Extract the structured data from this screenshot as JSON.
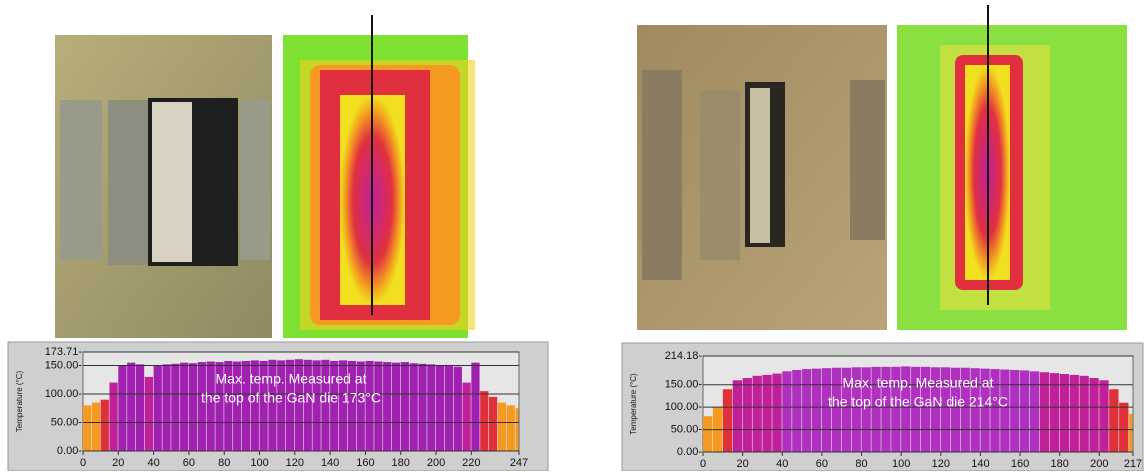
{
  "chart_data": [
    {
      "type": "bar",
      "y_label": "Temperature (°C)",
      "annotation": [
        "Max. temp. Measured at",
        "the top of the GaN die 173°C"
      ],
      "x": [
        0,
        5,
        10,
        15,
        20,
        25,
        30,
        35,
        40,
        45,
        50,
        55,
        60,
        65,
        70,
        75,
        80,
        85,
        90,
        95,
        100,
        105,
        110,
        115,
        120,
        125,
        130,
        135,
        140,
        145,
        150,
        155,
        160,
        165,
        170,
        175,
        180,
        185,
        190,
        195,
        200,
        205,
        210,
        215,
        220,
        225,
        230,
        235,
        240,
        245
      ],
      "values": [
        80,
        85,
        90,
        120,
        150,
        155,
        152,
        130,
        150,
        152,
        153,
        155,
        154,
        156,
        157,
        156,
        158,
        157,
        158,
        159,
        158,
        160,
        159,
        160,
        161,
        160,
        159,
        160,
        158,
        159,
        158,
        157,
        158,
        157,
        156,
        155,
        156,
        154,
        153,
        152,
        150,
        151,
        148,
        120,
        155,
        105,
        95,
        85,
        80,
        75
      ],
      "colormap": [
        "#a6e040",
        "#f2e020",
        "#f59a20",
        "#e0303a",
        "#c0209a",
        "#a020b0"
      ],
      "xlim": [
        0,
        247
      ],
      "xticks": [
        0,
        20,
        40,
        60,
        80,
        100,
        120,
        140,
        160,
        180,
        200,
        220,
        247
      ],
      "ylim": [
        0,
        173.71
      ],
      "yticks": [
        {
          "value": 0,
          "label": "0.00-"
        },
        {
          "value": 50,
          "label": "50.00-"
        },
        {
          "value": 100,
          "label": "100.00-"
        },
        {
          "value": 150,
          "label": "150.00-"
        },
        {
          "value": 173.71,
          "label": "173.71-"
        }
      ],
      "grid": true
    },
    {
      "type": "bar",
      "y_label": "Temperature (°C)",
      "annotation": [
        "Max. temp. Measured at",
        "the top of the GaN die 214°C"
      ],
      "x": [
        0,
        5,
        10,
        15,
        20,
        25,
        30,
        35,
        40,
        45,
        50,
        55,
        60,
        65,
        70,
        75,
        80,
        85,
        90,
        95,
        100,
        105,
        110,
        115,
        120,
        125,
        130,
        135,
        140,
        145,
        150,
        155,
        160,
        165,
        170,
        175,
        180,
        185,
        190,
        195,
        200,
        205,
        210,
        215
      ],
      "values": [
        80,
        100,
        140,
        160,
        165,
        170,
        172,
        175,
        180,
        183,
        185,
        186,
        187,
        188,
        188,
        189,
        189,
        190,
        190,
        190,
        191,
        190,
        190,
        189,
        189,
        188,
        188,
        187,
        186,
        185,
        184,
        183,
        182,
        180,
        178,
        176,
        174,
        172,
        170,
        165,
        160,
        140,
        110,
        85
      ],
      "colormap": [
        "#a6e040",
        "#f2e020",
        "#f59a20",
        "#e0303a",
        "#c0209a",
        "#b030c0"
      ],
      "xlim": [
        0,
        217
      ],
      "xticks": [
        0,
        20,
        40,
        60,
        80,
        100,
        120,
        140,
        160,
        180,
        200,
        217
      ],
      "ylim": [
        0,
        214.18
      ],
      "yticks": [
        {
          "value": 0,
          "label": "0.00-"
        },
        {
          "value": 50,
          "label": "50.00-"
        },
        {
          "value": 100,
          "label": "100.00-"
        },
        {
          "value": 150,
          "label": "150.00-"
        },
        {
          "value": 214.18,
          "label": "214.18-"
        }
      ],
      "grid": true
    }
  ]
}
